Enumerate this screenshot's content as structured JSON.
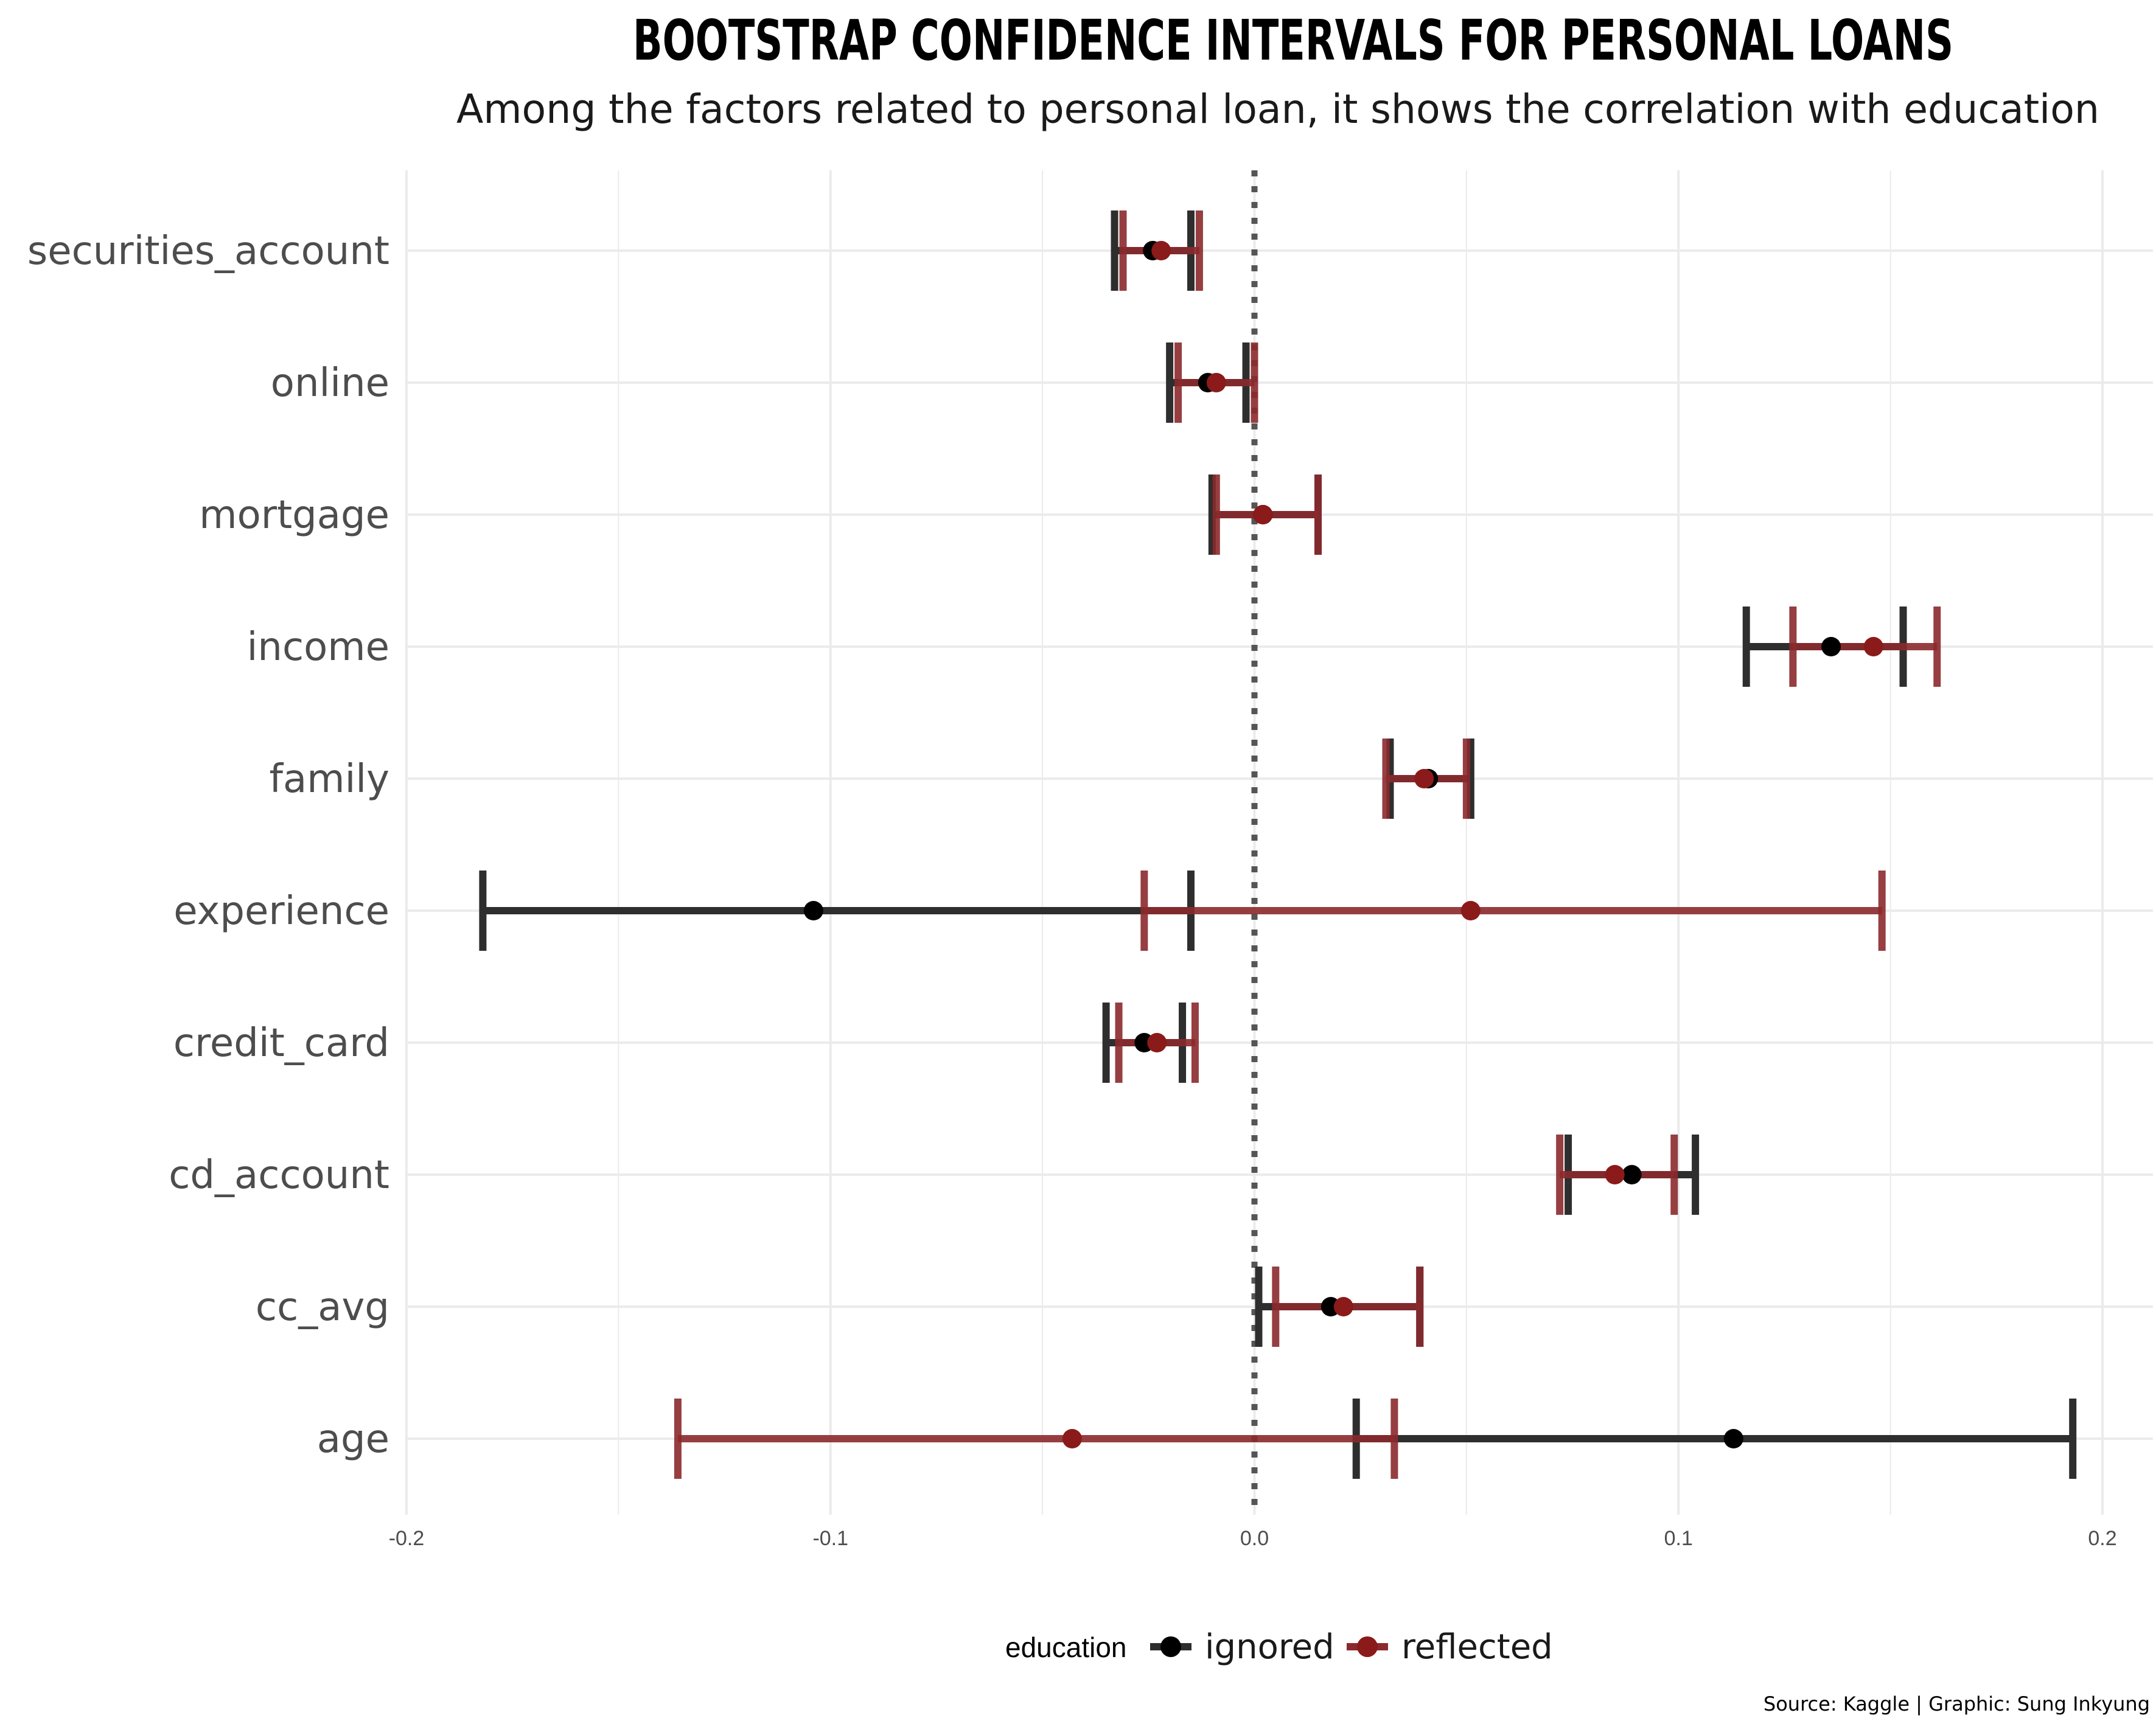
{
  "chart_data": {
    "type": "errorbar",
    "title": "BOOTSTRAP CONFIDENCE INTERVALS FOR PERSONAL LOANS",
    "subtitle": "Among the factors related to personal loan, it shows the correlation with education",
    "caption": "Source: Kaggle | Graphic: Sung Inkyung",
    "xlim": [
      -0.2,
      0.2
    ],
    "x_ticks": [
      -0.2,
      -0.1,
      0.0,
      0.1,
      0.2
    ],
    "x_tick_labels": [
      "-0.2",
      "-0.1",
      "0.0",
      "0.1",
      "0.2"
    ],
    "reference_line": 0,
    "grid": true,
    "legend": {
      "title": "education",
      "position": "bottom",
      "entries": [
        "ignored",
        "reflected"
      ]
    },
    "colors": {
      "ignored": "#2e2e2e",
      "ignored_point": "#000000",
      "reflected": "#8b2a2d",
      "reflected_point": "#8b1a1a",
      "grid": "#ebebeb",
      "refline": "#555555",
      "axis_text": "#4d4d4d"
    },
    "categories": [
      "securities_account",
      "online",
      "mortgage",
      "income",
      "family",
      "experience",
      "credit_card",
      "cd_account",
      "cc_avg",
      "age"
    ],
    "series": [
      {
        "name": "ignored",
        "estimate": [
          -0.024,
          -0.011,
          0.002,
          0.136,
          0.041,
          -0.104,
          -0.026,
          0.089,
          0.018,
          0.113
        ],
        "low": [
          -0.033,
          -0.02,
          -0.01,
          0.116,
          0.032,
          -0.182,
          -0.035,
          0.074,
          0.001,
          0.024
        ],
        "high": [
          -0.015,
          -0.002,
          0.015,
          0.153,
          0.051,
          -0.015,
          -0.017,
          0.104,
          0.039,
          0.193
        ]
      },
      {
        "name": "reflected",
        "estimate": [
          -0.022,
          -0.009,
          0.002,
          0.146,
          0.04,
          0.051,
          -0.023,
          0.085,
          0.021,
          -0.043
        ],
        "low": [
          -0.031,
          -0.018,
          -0.009,
          0.127,
          0.031,
          -0.026,
          -0.032,
          0.072,
          0.005,
          -0.136
        ],
        "high": [
          -0.013,
          0.0,
          0.015,
          0.161,
          0.05,
          0.148,
          -0.014,
          0.099,
          0.039,
          0.033
        ]
      }
    ]
  }
}
